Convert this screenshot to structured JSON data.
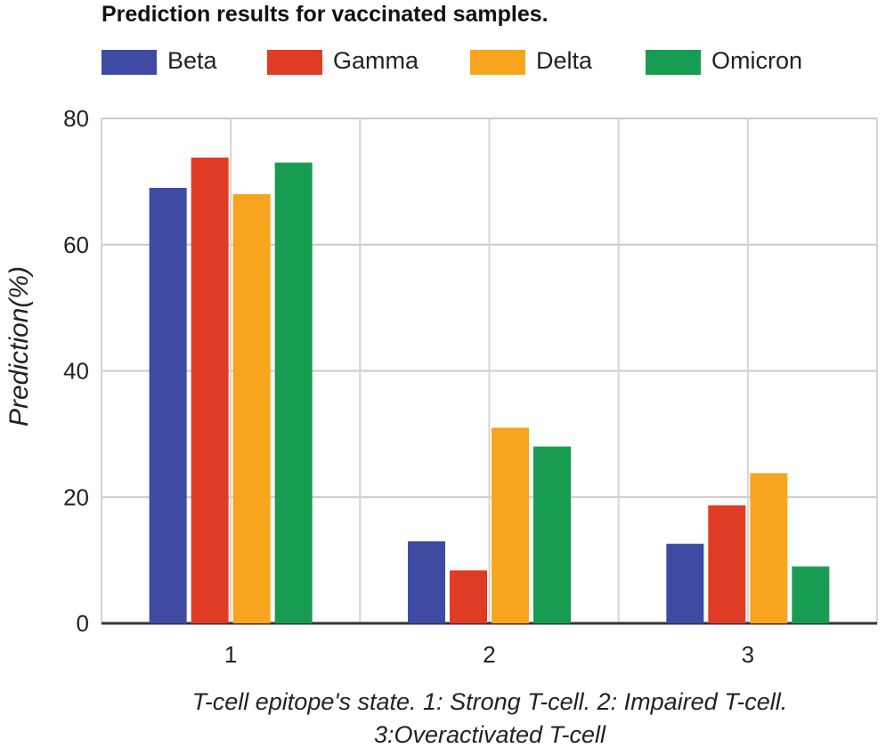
{
  "chart_data": {
    "type": "bar",
    "title": "Prediction results for vaccinated samples.",
    "categories": [
      "1",
      "2",
      "3"
    ],
    "series": [
      {
        "name": "Beta",
        "color": "#3f4ba3",
        "values": [
          69,
          13,
          12.6
        ]
      },
      {
        "name": "Gamma",
        "color": "#e03b24",
        "values": [
          73.8,
          8.4,
          18.7
        ]
      },
      {
        "name": "Delta",
        "color": "#f7a51e",
        "values": [
          68,
          31,
          23.8
        ]
      },
      {
        "name": "Omicron",
        "color": "#179c52",
        "values": [
          73,
          28,
          9
        ]
      }
    ],
    "ylabel": "Prediction(%)",
    "xlabel_line1": "T-cell epitope's state. 1: Strong T-cell. 2: Impaired T-cell.",
    "xlabel_line2": "3:Overactivated T-cell",
    "ylim": [
      0,
      80
    ],
    "yticks": [
      "0",
      "20",
      "40",
      "60",
      "80"
    ],
    "grid": true,
    "legend_position": "top"
  }
}
